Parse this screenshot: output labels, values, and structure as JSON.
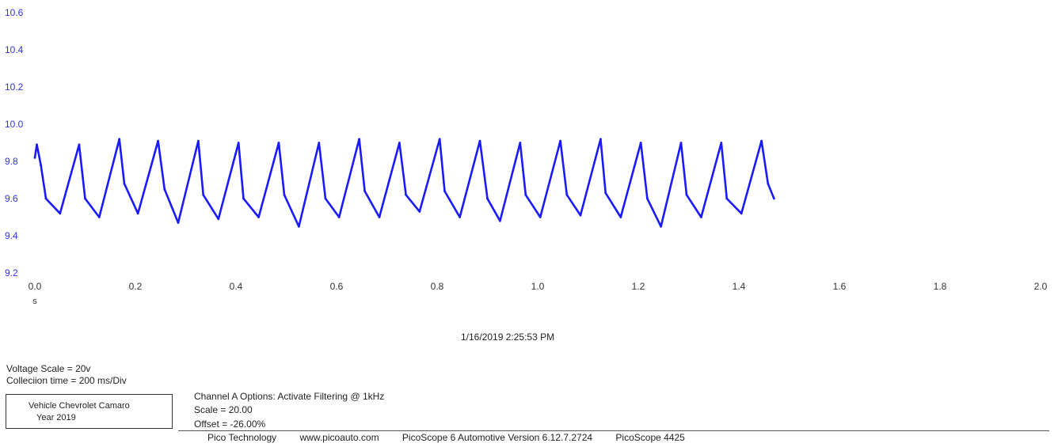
{
  "chart_data": {
    "type": "line",
    "title": "",
    "xlabel": "s",
    "ylabel": "",
    "xlim": [
      0.0,
      2.0
    ],
    "ylim": [
      9.2,
      10.6
    ],
    "x_ticks": [
      "0.0",
      "0.2",
      "0.4",
      "0.6",
      "0.8",
      "1.0",
      "1.2",
      "1.4",
      "1.6",
      "1.8",
      "2.0"
    ],
    "y_ticks": [
      "10.6",
      "10.4",
      "10.2",
      "10.0",
      "9.8",
      "9.6",
      "9.4",
      "9.2"
    ],
    "grid": false,
    "legend": "none",
    "series_color": "#1a1aff",
    "ytick_color": "#3030e8",
    "series": [
      {
        "x": [
          0.0,
          0.004,
          0.012,
          0.022,
          0.05,
          0.088,
          0.1,
          0.128,
          0.168,
          0.178,
          0.205,
          0.245,
          0.258,
          0.285,
          0.325,
          0.335,
          0.365,
          0.405,
          0.415,
          0.445,
          0.485,
          0.496,
          0.525,
          0.565,
          0.578,
          0.605,
          0.645,
          0.656,
          0.685,
          0.725,
          0.738,
          0.765,
          0.805,
          0.815,
          0.845,
          0.885,
          0.9,
          0.925,
          0.965,
          0.976,
          1.005,
          1.045,
          1.058,
          1.085,
          1.125,
          1.135,
          1.165,
          1.205,
          1.218,
          1.245,
          1.285,
          1.296,
          1.325,
          1.365,
          1.376,
          1.405,
          1.445,
          1.458,
          1.47
        ],
        "y": [
          9.82,
          9.89,
          9.78,
          9.6,
          9.52,
          9.89,
          9.6,
          9.5,
          9.92,
          9.68,
          9.52,
          9.91,
          9.65,
          9.47,
          9.91,
          9.62,
          9.49,
          9.9,
          9.6,
          9.5,
          9.9,
          9.62,
          9.45,
          9.9,
          9.6,
          9.5,
          9.92,
          9.64,
          9.5,
          9.9,
          9.62,
          9.53,
          9.92,
          9.64,
          9.5,
          9.91,
          9.6,
          9.48,
          9.9,
          9.62,
          9.5,
          9.91,
          9.62,
          9.51,
          9.92,
          9.63,
          9.5,
          9.9,
          9.6,
          9.45,
          9.9,
          9.62,
          9.5,
          9.9,
          9.6,
          9.52,
          9.91,
          9.68,
          9.6
        ]
      }
    ]
  },
  "timestamp": "1/16/2019 2:25:53 PM",
  "notes": {
    "voltage_scale": "Voltage Scale = 20v",
    "collection_time": "Colleciion time = 200 ms/Div"
  },
  "vehicle_box": {
    "vehicle": "Vehicle Chevrolet Camaro",
    "year": "Year 2019"
  },
  "channel": {
    "options": "Channel A Options: Activate Filtering @ 1kHz",
    "scale": "Scale = 20.00",
    "offset": "Offset = -26.00%"
  },
  "footer": {
    "company": "Pico Technology",
    "website": "www.picoauto.com",
    "version": "PicoScope 6 Automotive Version 6.12.7.2724",
    "device": "PicoScope 4425"
  }
}
